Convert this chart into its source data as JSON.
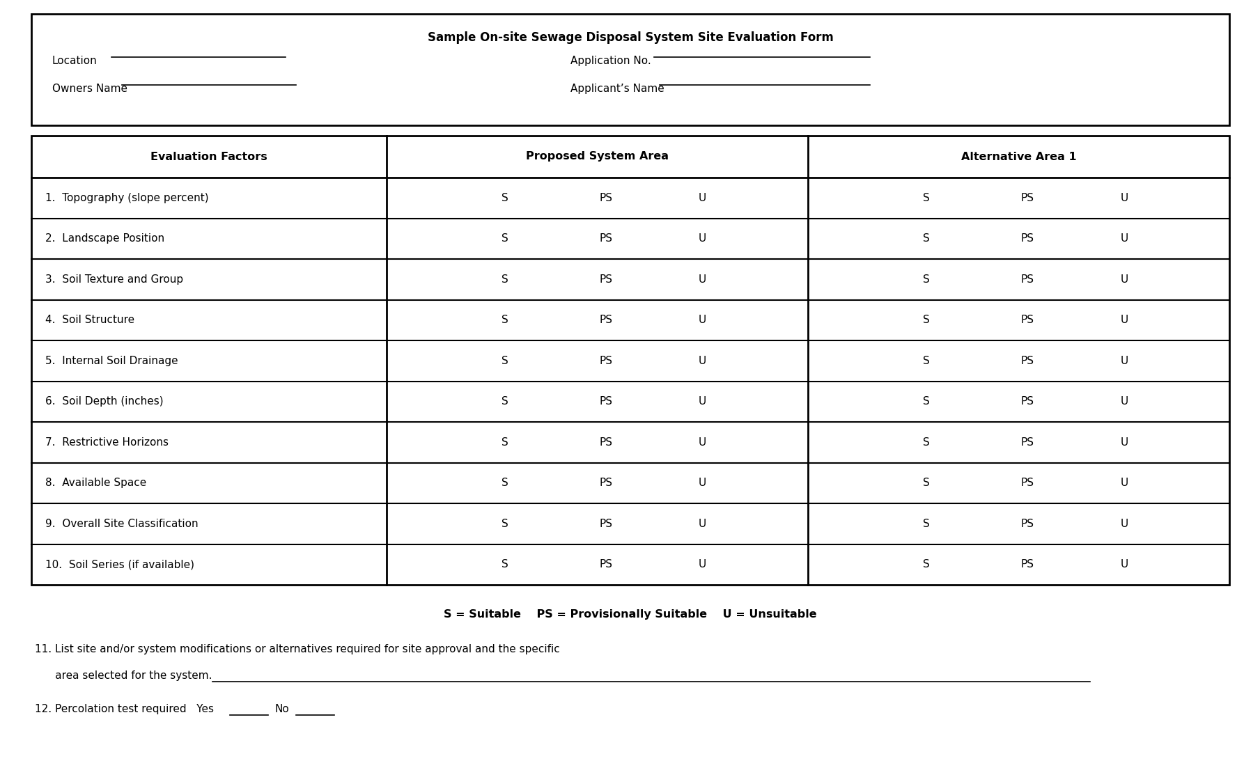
{
  "title": "Sample On-site Sewage Disposal System Site Evaluation Form",
  "header_fields": [
    [
      "Location",
      "Application No."
    ],
    [
      "Owners Name",
      "Applicant’s Name"
    ]
  ],
  "col_headers": [
    "Evaluation Factors",
    "Proposed System Area",
    "Alternative Area 1"
  ],
  "rows": [
    "1.  Topography (slope percent)",
    "2.  Landscape Position",
    "3.  Soil Texture and Group",
    "4.  Soil Structure",
    "5.  Internal Soil Drainage",
    "6.  Soil Depth (inches)",
    "7.  Restrictive Horizons",
    "8.  Available Space",
    "9.  Overall Site Classification",
    "10.  Soil Series (if available)"
  ],
  "sps_labels": [
    "S",
    "PS",
    "U"
  ],
  "legend_line": "S = Suitable    PS = Provisionally Suitable    U = Unsuitable",
  "note11": "11. List site and/or system modifications or alternatives required for site approval and the specific",
  "note11b": "      area selected for the system.",
  "note12": "12. Percolation test required   Yes_____   No _____",
  "bg_color": "#ffffff",
  "border_color": "#000000",
  "text_color": "#000000",
  "font_size": 11,
  "title_font_size": 12,
  "header_font_size": 11.5
}
